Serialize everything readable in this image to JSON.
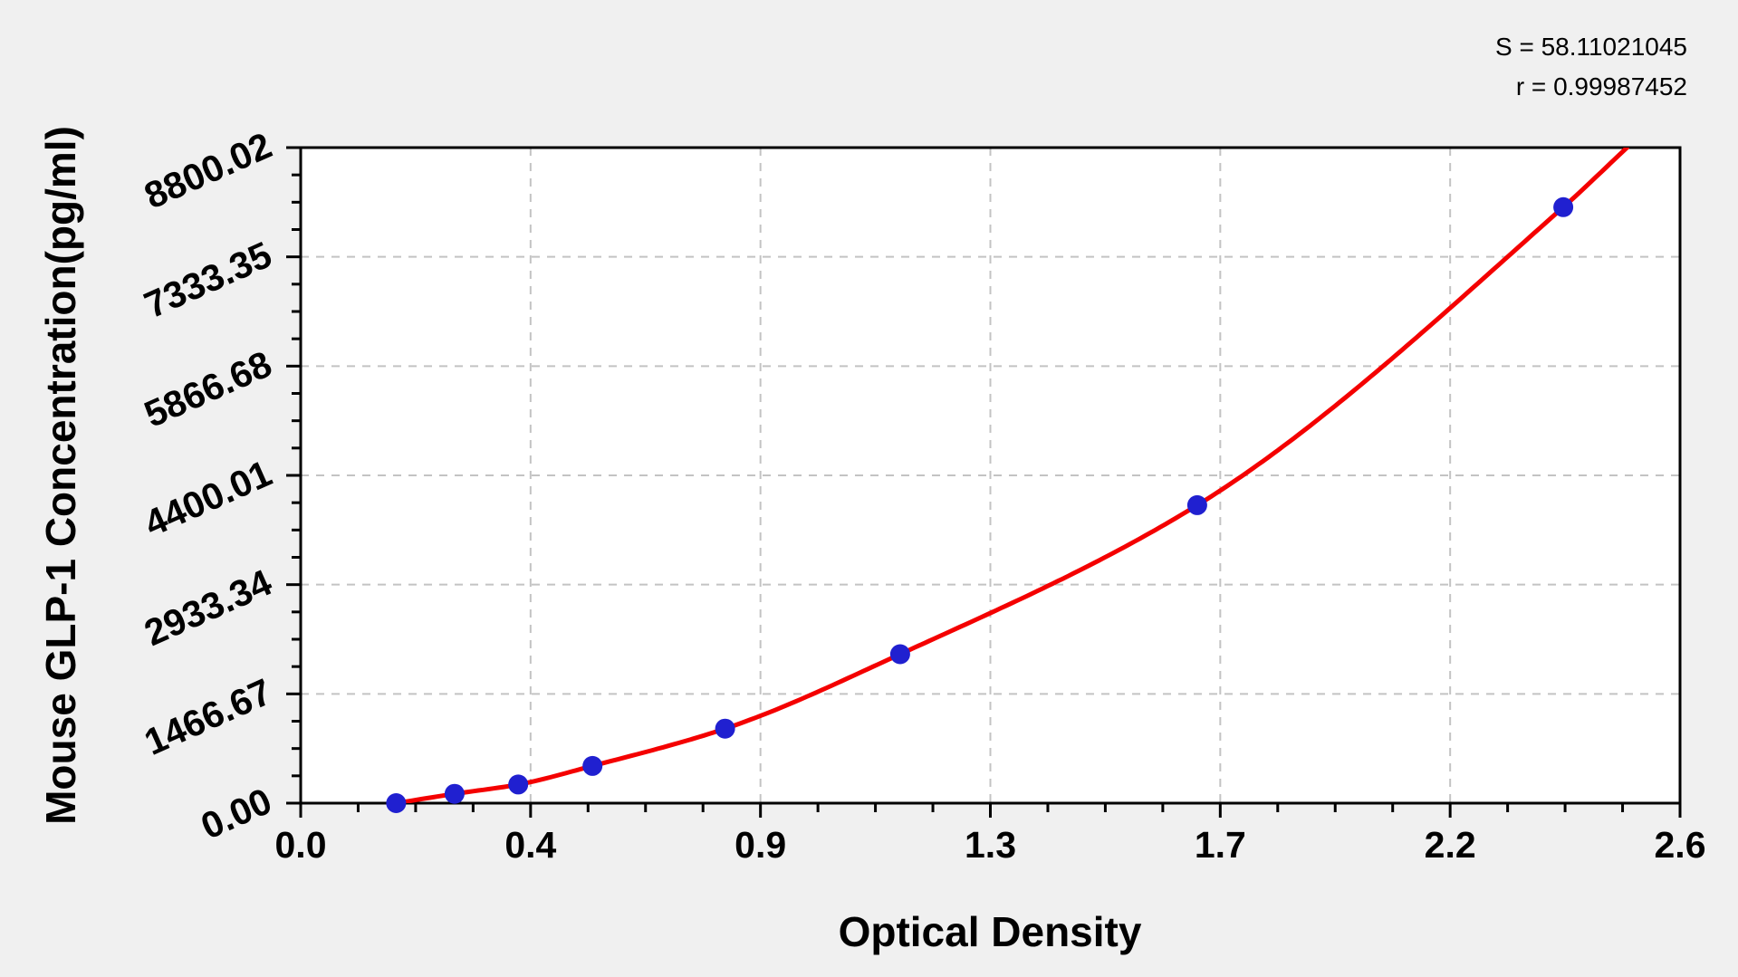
{
  "figure": {
    "background": "#f0f0f0",
    "plot_background": "#ffffff",
    "stats": {
      "line1": "S = 58.11021045",
      "line2": "r = 0.99987452"
    }
  },
  "chart_data": {
    "type": "scatter",
    "title": "",
    "xlabel": "Optical Density",
    "ylabel": "Mouse GLP-1 Concentration(pg/ml)",
    "xlim": [
      0,
      2.6
    ],
    "ylim": [
      0,
      8800.02
    ],
    "x_tick_labels": [
      "0.0",
      "0.4",
      "0.9",
      "1.3",
      "1.7",
      "2.2",
      "2.6"
    ],
    "y_tick_labels": [
      "0.00",
      "1466.67",
      "2933.34",
      "4400.01",
      "5866.68",
      "7333.35",
      "8800.02"
    ],
    "minor_ticks_per_major": 4,
    "grid": "dashed gray lines at major ticks",
    "legend": "none",
    "stats": {
      "S": 58.11021045,
      "r": 0.99987452
    },
    "colors": {
      "point": "#2020d0",
      "curve": "#f40000",
      "grid": "#c3c3c3",
      "axis": "#000000"
    },
    "series": [
      {
        "name": "standard-points",
        "type": "scatter",
        "points": [
          {
            "od": 0.18,
            "conc": 0
          },
          {
            "od": 0.29,
            "conc": 125
          },
          {
            "od": 0.41,
            "conc": 250
          },
          {
            "od": 0.55,
            "conc": 500
          },
          {
            "od": 0.8,
            "conc": 1000
          },
          {
            "od": 1.13,
            "conc": 2000
          },
          {
            "od": 1.69,
            "conc": 4000
          },
          {
            "od": 2.38,
            "conc": 8000
          }
        ]
      },
      {
        "name": "fitted-curve",
        "type": "line",
        "extends_to": {
          "od": 2.5,
          "conc": 8800.02
        }
      }
    ]
  }
}
